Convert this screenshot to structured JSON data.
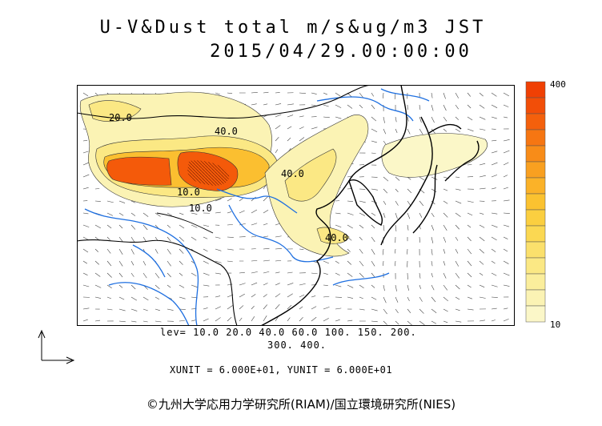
{
  "header": {
    "title": "U-V&Dust total m/s&ug/m3 JST",
    "timestamp": "2015/04/29.00:00:00"
  },
  "legend": {
    "max_label": "400",
    "min_label": "10",
    "colors": [
      "#fbf7c8",
      "#fbf3b4",
      "#fbee9c",
      "#fbe884",
      "#fbe06c",
      "#fbd852",
      "#fbcf40",
      "#fbc230",
      "#fbb228",
      "#f9a020",
      "#f88c18",
      "#f67612",
      "#f4600c",
      "#f24e08",
      "#f04004"
    ]
  },
  "contours": {
    "levels_line1": "lev= 10.0 20.0 40.0 60.0 100. 150. 200.",
    "levels_line2": "300. 400.",
    "labels": [
      "40.0",
      "40.0",
      "10.0",
      "10.0",
      "40.0",
      "20.0"
    ]
  },
  "units": {
    "text": "XUNIT = 6.000E+01, YUNIT = 6.000E+01"
  },
  "credit": {
    "text": "©九州大学応用力学研究所(RIAM)/国立環境研究所(NIES)"
  },
  "colors": {
    "coast": "#000000",
    "rivers": "#1e6fe0",
    "high": "#f45a0a",
    "mid": "#fbbf30",
    "low": "#fbf3b4"
  }
}
